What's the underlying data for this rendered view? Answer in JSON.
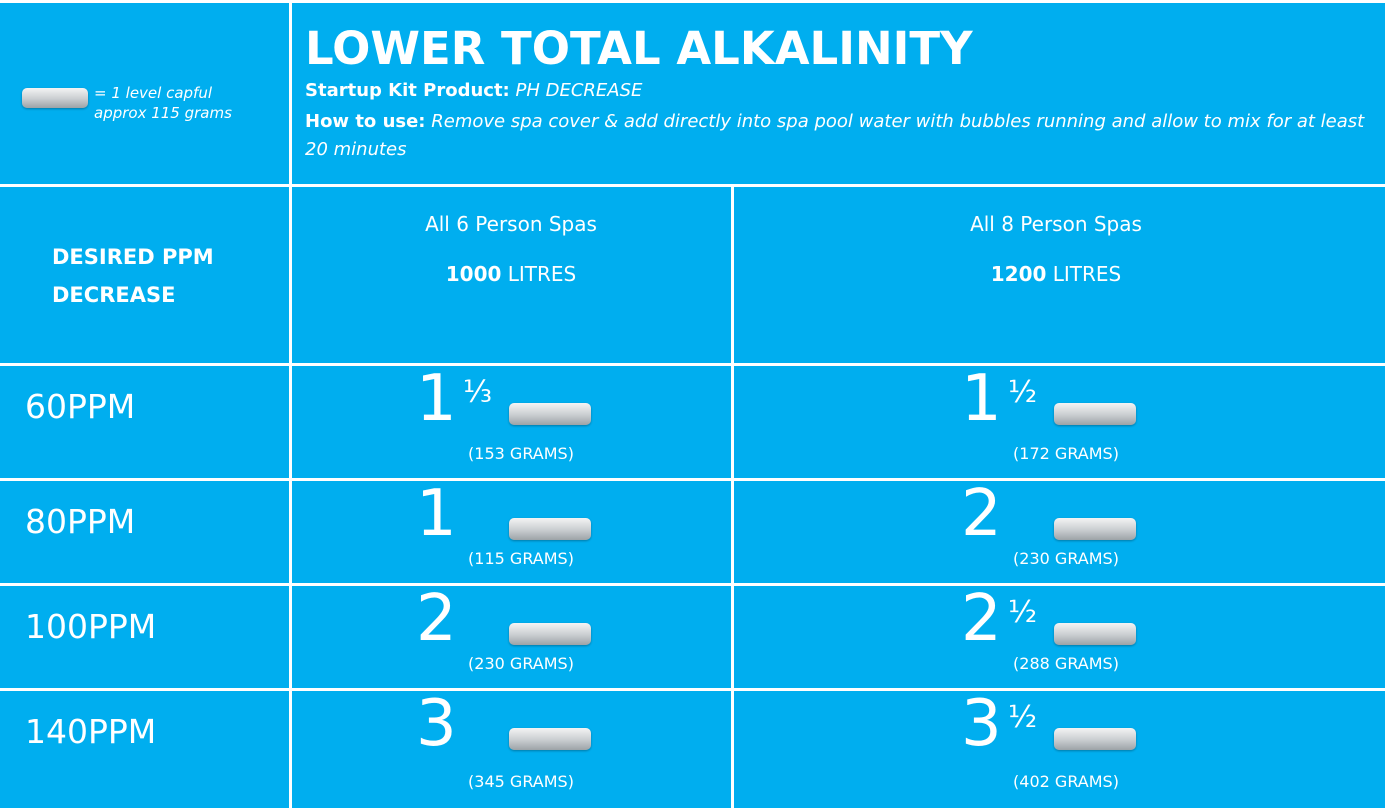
{
  "legend": {
    "line1": "= 1 level capful",
    "line2": "approx 115 grams"
  },
  "header": {
    "title": "LOWER TOTAL ALKALINITY",
    "product_label": "Startup Kit Product:",
    "product": "PH DECREASE",
    "usage_label": "How to use:",
    "usage": "Remove spa cover & add directly into spa pool water with bubbles running and allow to mix for at least 20 minutes"
  },
  "table": {
    "corner": [
      "DESIRED  PPM",
      "DECREASE"
    ],
    "columns": [
      {
        "name": "All 6 Person Spas",
        "volume": "1000",
        "unit": "LITRES"
      },
      {
        "name": "All 8 Person Spas",
        "volume": "1200",
        "unit": "LITRES"
      }
    ],
    "rows": [
      {
        "ppm": "60PPM",
        "cells": [
          {
            "whole": "1",
            "fraction": "⅓",
            "grams": "(153 GRAMS)"
          },
          {
            "whole": "1",
            "fraction": "½",
            "grams": "(172 GRAMS)"
          }
        ]
      },
      {
        "ppm": "80PPM",
        "cells": [
          {
            "whole": "1",
            "grams": "(115 GRAMS)"
          },
          {
            "whole": "2",
            "grams": "(230 GRAMS)"
          }
        ]
      },
      {
        "ppm": "100PPM",
        "cells": [
          {
            "whole": "2",
            "grams": "(230 GRAMS)"
          },
          {
            "whole": "2",
            "fraction": "½",
            "grams": "(288 GRAMS)"
          }
        ]
      },
      {
        "ppm": "140PPM",
        "cells": [
          {
            "whole": "3",
            "grams": "(345 GRAMS)"
          },
          {
            "whole": "3",
            "fraction": "½",
            "grams": "(402 GRAMS)"
          }
        ]
      }
    ]
  }
}
